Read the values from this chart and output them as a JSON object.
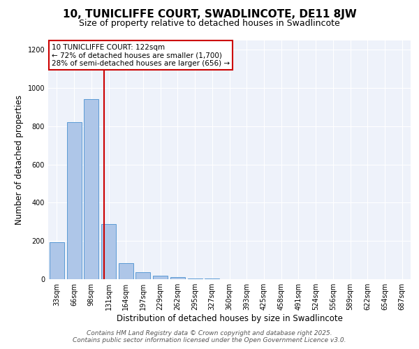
{
  "title": "10, TUNICLIFFE COURT, SWADLINCOTE, DE11 8JW",
  "subtitle": "Size of property relative to detached houses in Swadlincote",
  "xlabel": "Distribution of detached houses by size in Swadlincote",
  "ylabel": "Number of detached properties",
  "categories": [
    "33sqm",
    "66sqm",
    "98sqm",
    "131sqm",
    "164sqm",
    "197sqm",
    "229sqm",
    "262sqm",
    "295sqm",
    "327sqm",
    "360sqm",
    "393sqm",
    "425sqm",
    "458sqm",
    "491sqm",
    "524sqm",
    "556sqm",
    "589sqm",
    "622sqm",
    "654sqm",
    "687sqm"
  ],
  "values": [
    195,
    820,
    940,
    290,
    85,
    35,
    20,
    10,
    5,
    2,
    0,
    0,
    0,
    0,
    0,
    0,
    0,
    0,
    0,
    0,
    0
  ],
  "bar_color": "#aec6e8",
  "bar_edge_color": "#5b9bd5",
  "red_line_x": 2.72,
  "annotation_text": "10 TUNICLIFFE COURT: 122sqm\n← 72% of detached houses are smaller (1,700)\n28% of semi-detached houses are larger (656) →",
  "annotation_box_color": "#ffffff",
  "annotation_box_edge": "#cc0000",
  "red_line_color": "#cc0000",
  "ylim": [
    0,
    1250
  ],
  "yticks": [
    0,
    200,
    400,
    600,
    800,
    1000,
    1200
  ],
  "background_color": "#eef2fa",
  "footer_line1": "Contains HM Land Registry data © Crown copyright and database right 2025.",
  "footer_line2": "Contains public sector information licensed under the Open Government Licence v3.0.",
  "title_fontsize": 11,
  "subtitle_fontsize": 9,
  "xlabel_fontsize": 8.5,
  "ylabel_fontsize": 8.5,
  "tick_fontsize": 7,
  "footer_fontsize": 6.5
}
